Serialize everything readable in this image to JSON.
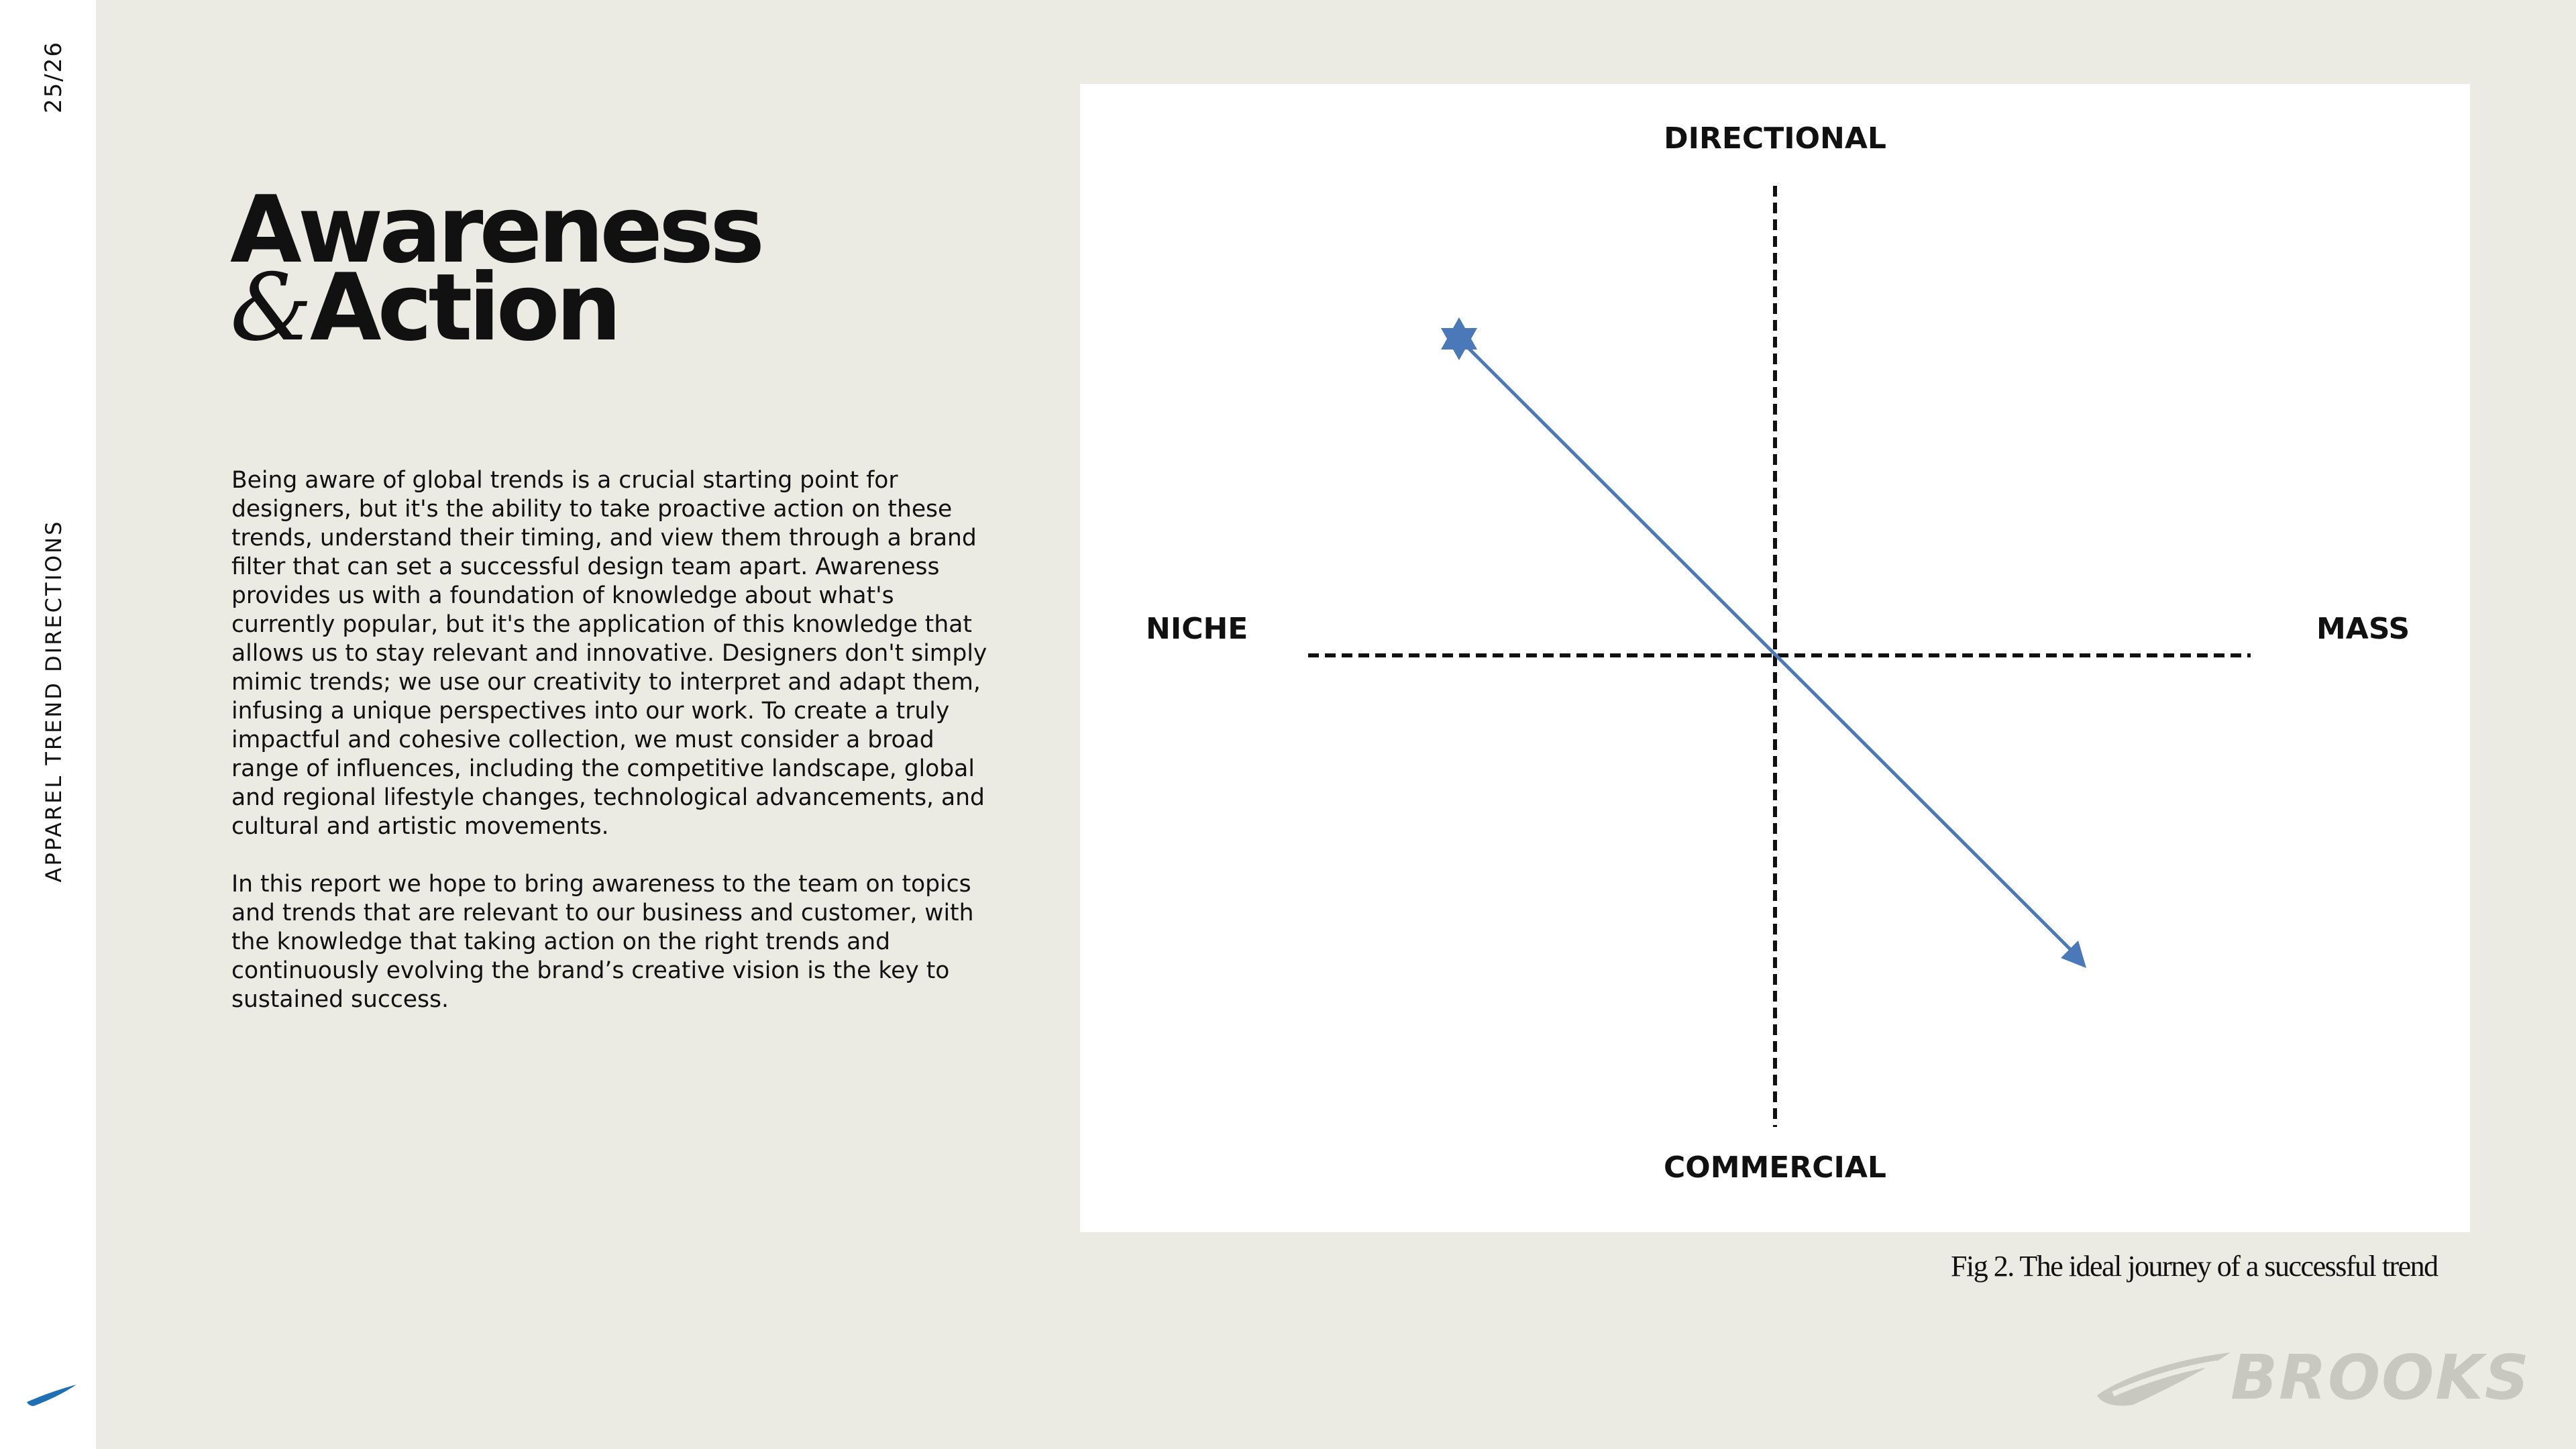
{
  "sidebar": {
    "page_number": "25/26",
    "section_label": "APPAREL TREND DIRECTIONS"
  },
  "title": {
    "line1": "Awareness",
    "amp": "&",
    "line2": "Action"
  },
  "body": {
    "paragraph1": "Being aware of global trends is a crucial starting point for designers, but it's the ability to take proactive action on these trends, understand their timing, and view them through a brand filter that can set a successful design team apart. Awareness provides us with a foundation of knowledge about what's currently popular, but it's the application of this knowledge that allows us to stay relevant and innovative. Designers don't simply mimic trends; we use our creativity to interpret and adapt them, infusing a unique perspectives into our work. To create a truly impactful and cohesive collection, we must consider a broad range of influences, including the competitive landscape, global and regional lifestyle changes, technological advancements, and cultural and artistic movements.",
    "paragraph2": "In this report we hope to bring awareness to the team on topics and trends that are relevant to our business and customer, with the knowledge that taking action on  the right trends and continuously evolving the brand’s creative vision is the key to sustained success."
  },
  "diagram": {
    "labels": {
      "top": "DIRECTIONAL",
      "bottom": "COMMERCIAL",
      "left": "NICHE",
      "right": "MASS"
    },
    "arrow_color": "#4a78b8",
    "axis_color": "#111111",
    "start_marker_icon": "star-icon",
    "end_marker_icon": "arrowhead-icon"
  },
  "caption": "Fig 2. The ideal journey of a successful trend",
  "brand": {
    "wordmark": "BROOKS",
    "logo_color": "#c8c7c0",
    "accent_color": "#1f6fb5"
  }
}
